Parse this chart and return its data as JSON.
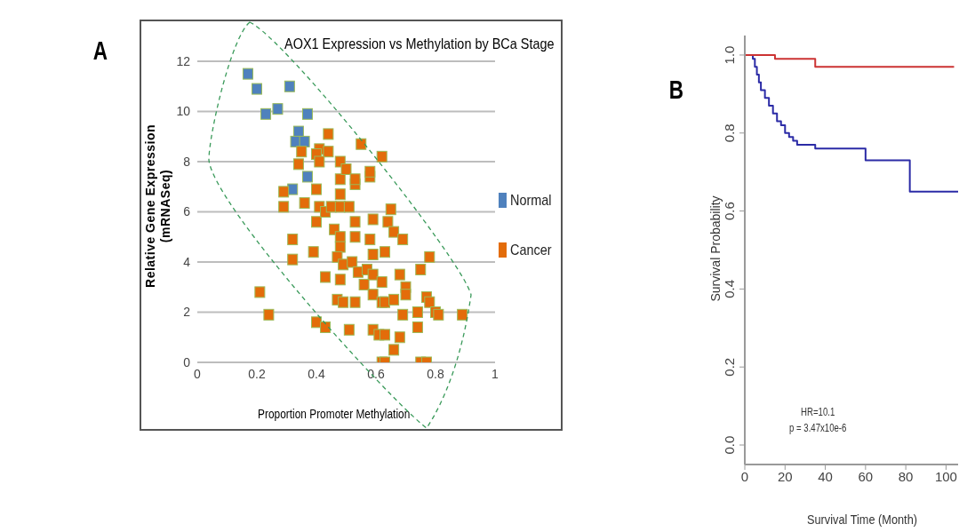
{
  "chart_data": [
    {
      "type": "scatter",
      "title": "AOX1 Expression vs Methylation by BCa Stage",
      "xlabel": "Proportion Promoter Methylation",
      "ylabel": "Relative Gene Expression (mRNASeq)",
      "annotations": [
        "A"
      ],
      "xlim": [
        0,
        1
      ],
      "xticks": [
        0,
        0.2,
        0.4,
        0.6,
        0.8,
        1
      ],
      "ylim": [
        0,
        12
      ],
      "yticks": [
        0,
        2,
        4,
        6,
        8,
        10,
        12
      ],
      "grid": "y",
      "legend": "right",
      "marker": "square",
      "series": [
        {
          "name": "Normal",
          "color": "#4f81bd",
          "x": [
            0.17,
            0.2,
            0.23,
            0.27,
            0.31,
            0.37,
            0.34,
            0.33,
            0.36,
            0.37,
            0.32
          ],
          "values": [
            11.5,
            10.9,
            9.9,
            10.1,
            11.0,
            9.9,
            9.2,
            8.8,
            8.8,
            7.4,
            6.9
          ]
        },
        {
          "name": "Cancer",
          "color": "#e36c0a",
          "x": [
            0.29,
            0.29,
            0.36,
            0.4,
            0.4,
            0.41,
            0.43,
            0.45,
            0.48,
            0.48,
            0.48,
            0.51,
            0.53,
            0.53,
            0.58,
            0.59,
            0.65,
            0.64,
            0.66,
            0.69,
            0.46,
            0.48,
            0.48,
            0.53,
            0.32,
            0.32,
            0.39,
            0.47,
            0.49,
            0.52,
            0.58,
            0.59,
            0.63,
            0.54,
            0.57,
            0.59,
            0.62,
            0.43,
            0.48,
            0.56,
            0.59,
            0.68,
            0.7,
            0.75,
            0.78,
            0.21,
            0.24,
            0.47,
            0.49,
            0.53,
            0.62,
            0.63,
            0.66,
            0.7,
            0.69,
            0.74,
            0.77,
            0.78,
            0.8,
            0.81,
            0.89,
            0.4,
            0.43,
            0.51,
            0.59,
            0.61,
            0.63,
            0.68,
            0.66,
            0.74,
            0.62,
            0.63,
            0.75,
            0.77,
            0.44,
            0.41,
            0.4,
            0.44,
            0.35,
            0.34,
            0.48,
            0.5,
            0.53,
            0.55,
            0.58,
            0.62,
            0.41
          ],
          "values": [
            6.8,
            6.2,
            6.35,
            6.9,
            5.6,
            6.2,
            6.0,
            6.2,
            7.3,
            6.7,
            6.2,
            6.2,
            5.6,
            7.1,
            7.4,
            5.7,
            6.1,
            5.6,
            5.2,
            4.9,
            5.3,
            5.0,
            4.6,
            5.0,
            4.9,
            4.1,
            4.4,
            4.2,
            3.9,
            4.0,
            4.9,
            4.3,
            4.4,
            3.6,
            3.7,
            3.5,
            3.2,
            3.4,
            3.3,
            3.1,
            2.7,
            3.5,
            3.0,
            3.7,
            4.2,
            2.8,
            1.9,
            2.5,
            2.4,
            2.4,
            2.4,
            2.4,
            2.5,
            2.7,
            1.9,
            2.0,
            2.6,
            2.4,
            2.0,
            1.9,
            1.9,
            1.6,
            1.4,
            1.3,
            1.3,
            1.1,
            1.1,
            1.0,
            0.5,
            1.4,
            0,
            0,
            0,
            0,
            9.1,
            8.5,
            8.3,
            8.4,
            8.4,
            7.9,
            8.0,
            7.7,
            7.3,
            8.7,
            7.6,
            8.2,
            8.0
          ]
        }
      ]
    },
    {
      "type": "step",
      "xlabel": "Survival Time (Month)",
      "ylabel": "Survival Probability",
      "annotations": [
        "B",
        "HR=10.1",
        "p = 3.47x10e-6"
      ],
      "xlim": [
        0,
        106
      ],
      "xticks": [
        0,
        20,
        40,
        60,
        80,
        100
      ],
      "ylim": [
        -0.05,
        1.05
      ],
      "yticks": [
        {
          "value": 0,
          "label": "0.0"
        },
        {
          "value": 0.2,
          "label": "0.2"
        },
        {
          "value": 0.4,
          "label": "0.4"
        },
        {
          "value": 0.6,
          "label": "0.6"
        },
        {
          "value": 0.8,
          "label": "0.8"
        },
        {
          "value": 1,
          "label": "1.0"
        }
      ],
      "series": [
        {
          "color": "#2b2ba6",
          "x": [
            0,
            4,
            5,
            6,
            7,
            8,
            10,
            12,
            14,
            16,
            18,
            20,
            22,
            24,
            26,
            35,
            60,
            82,
            106
          ],
          "values": [
            1.0,
            0.99,
            0.97,
            0.95,
            0.93,
            0.91,
            0.89,
            0.87,
            0.85,
            0.83,
            0.82,
            0.8,
            0.79,
            0.78,
            0.77,
            0.76,
            0.73,
            0.65,
            0.65
          ]
        },
        {
          "color": "#cc3333",
          "x": [
            0,
            15,
            35,
            104
          ],
          "values": [
            1.0,
            0.99,
            0.97,
            0.97
          ]
        }
      ]
    }
  ]
}
